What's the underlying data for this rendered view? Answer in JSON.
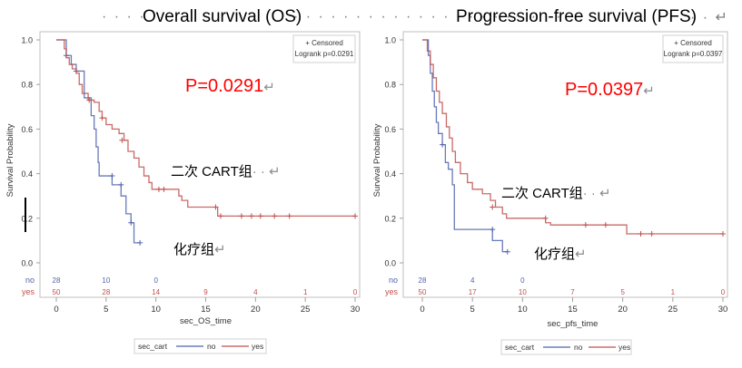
{
  "titles": {
    "os": "Overall survival (OS)",
    "pfs": "Progression-free survival (PFS)",
    "dots_left": "· · · · ·",
    "dots_mid": "· · · · · · · · · · · · · · · · · · · · · ·",
    "dots_right": "· · ↵"
  },
  "annotations": {
    "os_p": "P=0.0291",
    "pfs_p": "P=0.0397",
    "return_mark": "↵",
    "cart_group": "二次 CART组",
    "cart_suffix": "· · ↵",
    "chemo_group": "化疗组"
  },
  "colors": {
    "no": "#4f63ad",
    "yes": "#c0504d",
    "pvalue": "#ff0000",
    "axis": "#bfbfbf"
  },
  "chart_data": [
    {
      "type": "line",
      "subtype": "kaplan-meier",
      "id": "os",
      "title": "Overall survival (OS)",
      "xlabel": "sec_OS_time",
      "ylabel": "Survival Probability",
      "xlim": [
        0,
        30
      ],
      "ylim": [
        0,
        1
      ],
      "xticks": [
        0,
        5,
        10,
        15,
        20,
        25,
        30
      ],
      "yticks": [
        "0.0",
        "0.2",
        "0.4",
        "0.6",
        "0.8",
        "1.0"
      ],
      "grid": false,
      "inset": [
        "+ Censored",
        "Logrank p=0.0291"
      ],
      "inset_position": "top-right",
      "legend": {
        "title": "sec_cart",
        "entries": [
          "no",
          "yes"
        ],
        "position": "bottom"
      },
      "risk_table": {
        "times": [
          0,
          5,
          10,
          15,
          20,
          25,
          30
        ],
        "rows": [
          {
            "label": "no",
            "values": [
              "28",
              "10",
              "0",
              "",
              "",
              "",
              ""
            ]
          },
          {
            "label": "yes",
            "values": [
              "50",
              "28",
              "14",
              "9",
              "4",
              "1",
              "0"
            ]
          }
        ]
      },
      "series": [
        {
          "name": "no",
          "steps": [
            [
              0,
              1.0
            ],
            [
              1.0,
              0.93
            ],
            [
              1.5,
              0.89
            ],
            [
              2.0,
              0.86
            ],
            [
              2.8,
              0.74
            ],
            [
              3.5,
              0.66
            ],
            [
              3.8,
              0.6
            ],
            [
              4.0,
              0.52
            ],
            [
              4.2,
              0.45
            ],
            [
              4.3,
              0.39
            ],
            [
              5.6,
              0.35
            ],
            [
              6.5,
              0.3
            ],
            [
              7.0,
              0.22
            ],
            [
              7.5,
              0.18
            ],
            [
              7.8,
              0.09
            ],
            [
              8.4,
              0.09
            ]
          ],
          "censored": [
            [
              1.0,
              0.93
            ],
            [
              2.0,
              0.86
            ],
            [
              5.6,
              0.39
            ],
            [
              6.5,
              0.35
            ],
            [
              7.5,
              0.18
            ],
            [
              8.4,
              0.09
            ]
          ]
        },
        {
          "name": "yes",
          "steps": [
            [
              0,
              1.0
            ],
            [
              0.8,
              0.96
            ],
            [
              1.0,
              0.92
            ],
            [
              1.3,
              0.89
            ],
            [
              1.6,
              0.87
            ],
            [
              2.0,
              0.85
            ],
            [
              2.3,
              0.8
            ],
            [
              2.6,
              0.76
            ],
            [
              3.2,
              0.73
            ],
            [
              3.8,
              0.72
            ],
            [
              4.3,
              0.68
            ],
            [
              4.6,
              0.65
            ],
            [
              5.0,
              0.62
            ],
            [
              5.6,
              0.6
            ],
            [
              6.3,
              0.58
            ],
            [
              6.8,
              0.55
            ],
            [
              7.2,
              0.5
            ],
            [
              7.8,
              0.47
            ],
            [
              8.3,
              0.43
            ],
            [
              8.8,
              0.39
            ],
            [
              9.3,
              0.36
            ],
            [
              9.6,
              0.33
            ],
            [
              12.3,
              0.3
            ],
            [
              12.6,
              0.28
            ],
            [
              13.2,
              0.25
            ],
            [
              16.2,
              0.21
            ],
            [
              30,
              0.21
            ]
          ],
          "censored": [
            [
              3.3,
              0.73
            ],
            [
              4.6,
              0.65
            ],
            [
              6.6,
              0.55
            ],
            [
              10.3,
              0.33
            ],
            [
              10.8,
              0.33
            ],
            [
              16.0,
              0.25
            ],
            [
              16.5,
              0.21
            ],
            [
              18.6,
              0.21
            ],
            [
              19.6,
              0.21
            ],
            [
              20.5,
              0.21
            ],
            [
              21.9,
              0.21
            ],
            [
              23.4,
              0.21
            ],
            [
              30,
              0.21
            ]
          ]
        }
      ]
    },
    {
      "type": "line",
      "subtype": "kaplan-meier",
      "id": "pfs",
      "title": "Progression-free survival (PFS)",
      "xlabel": "sec_pfs_time",
      "ylabel": "Survival Probability",
      "xlim": [
        0,
        30
      ],
      "ylim": [
        0,
        1
      ],
      "xticks": [
        0,
        5,
        10,
        15,
        20,
        25,
        30
      ],
      "yticks": [
        "0.0",
        "0.2",
        "0.4",
        "0.6",
        "0.8",
        "1.0"
      ],
      "grid": false,
      "inset": [
        "+ Censored",
        "Logrank p=0.0397"
      ],
      "inset_position": "top-right",
      "legend": {
        "title": "sec_cart",
        "entries": [
          "no",
          "yes"
        ],
        "position": "bottom"
      },
      "risk_table": {
        "times": [
          0,
          5,
          10,
          15,
          20,
          25,
          30
        ],
        "rows": [
          {
            "label": "no",
            "values": [
              "28",
              "4",
              "0",
              "",
              "",
              "",
              ""
            ]
          },
          {
            "label": "yes",
            "values": [
              "50",
              "17",
              "10",
              "7",
              "5",
              "1",
              "0"
            ]
          }
        ]
      },
      "series": [
        {
          "name": "no",
          "steps": [
            [
              0,
              1.0
            ],
            [
              0.6,
              0.93
            ],
            [
              0.8,
              0.85
            ],
            [
              1.0,
              0.77
            ],
            [
              1.2,
              0.7
            ],
            [
              1.4,
              0.63
            ],
            [
              1.6,
              0.58
            ],
            [
              2.0,
              0.53
            ],
            [
              2.3,
              0.45
            ],
            [
              2.6,
              0.42
            ],
            [
              3.0,
              0.35
            ],
            [
              3.2,
              0.15
            ],
            [
              7.0,
              0.1
            ],
            [
              8.0,
              0.05
            ],
            [
              8.5,
              0.05
            ]
          ],
          "censored": [
            [
              2.0,
              0.53
            ],
            [
              7.0,
              0.15
            ],
            [
              8.5,
              0.05
            ]
          ]
        },
        {
          "name": "yes",
          "steps": [
            [
              0,
              1.0
            ],
            [
              0.5,
              0.95
            ],
            [
              0.8,
              0.89
            ],
            [
              1.1,
              0.83
            ],
            [
              1.4,
              0.77
            ],
            [
              1.7,
              0.72
            ],
            [
              2.0,
              0.67
            ],
            [
              2.4,
              0.61
            ],
            [
              2.7,
              0.56
            ],
            [
              3.0,
              0.5
            ],
            [
              3.3,
              0.45
            ],
            [
              3.8,
              0.4
            ],
            [
              4.5,
              0.36
            ],
            [
              5.0,
              0.33
            ],
            [
              6.0,
              0.31
            ],
            [
              6.8,
              0.28
            ],
            [
              7.3,
              0.25
            ],
            [
              8.0,
              0.22
            ],
            [
              8.4,
              0.2
            ],
            [
              12.3,
              0.18
            ],
            [
              12.8,
              0.17
            ],
            [
              20.4,
              0.13
            ],
            [
              30,
              0.13
            ]
          ],
          "censored": [
            [
              7.0,
              0.25
            ],
            [
              12.3,
              0.2
            ],
            [
              16.3,
              0.17
            ],
            [
              18.3,
              0.17
            ],
            [
              21.8,
              0.13
            ],
            [
              22.9,
              0.13
            ],
            [
              30,
              0.13
            ]
          ]
        }
      ]
    }
  ]
}
